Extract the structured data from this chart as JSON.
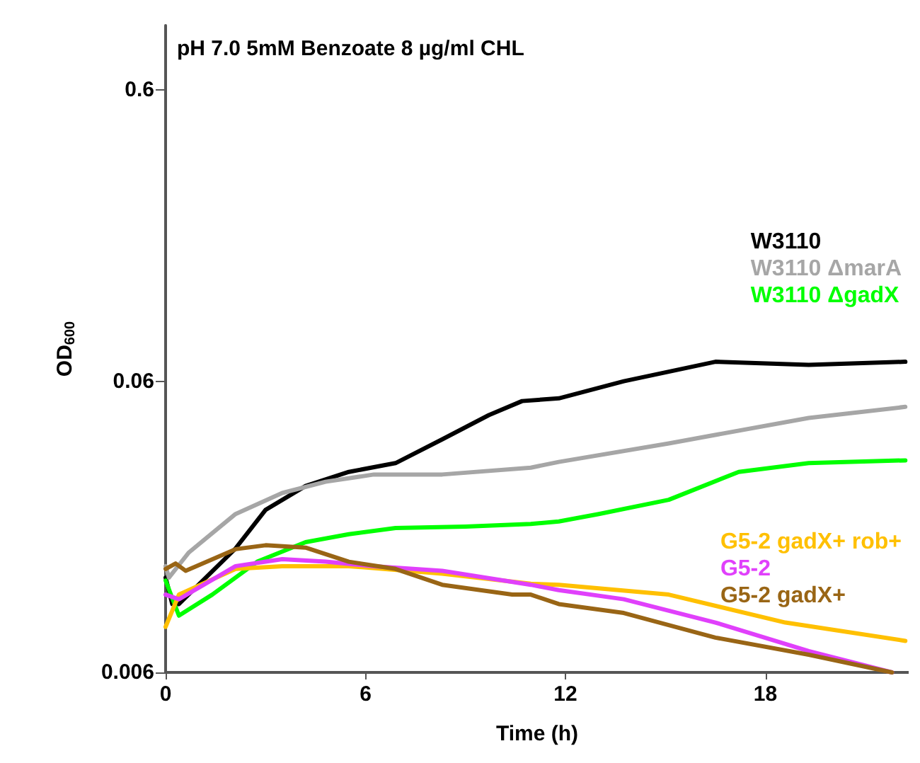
{
  "chart_data": {
    "type": "line",
    "title": "pH 7.0 5mM Benzoate 8 µg/ml CHL",
    "xlabel": "Time (h)",
    "ylabel": "OD$_{600}$",
    "log": "y",
    "xlim": [
      0,
      22.3
    ],
    "xticks": [
      0,
      6,
      12,
      18
    ],
    "ylim": [
      0.006,
      1
    ],
    "yticks": [
      0.006,
      0.06,
      0.6
    ],
    "grid": false,
    "legend": "right",
    "marker": "none",
    "line_style": "solid",
    "series": [
      {
        "name": "W3110",
        "color": "#000000",
        "x": [
          0,
          0.2,
          0.4,
          2.1,
          3.0,
          4.2,
          5.5,
          6.9,
          8.3,
          9.7,
          10.7,
          11.8,
          13.75,
          16.5,
          19.3,
          22.2
        ],
        "values": [
          0.0127,
          0.0103,
          0.0103,
          0.016,
          0.0217,
          0.0262,
          0.0293,
          0.0314,
          0.0379,
          0.0459,
          0.0513,
          0.0524,
          0.06,
          0.07,
          0.0683,
          0.07
        ]
      },
      {
        "name": "W3110 ΔmarA",
        "color": "#a6a6a6",
        "x": [
          0,
          0.1,
          0.7,
          2.1,
          3.5,
          4.8,
          6.25,
          8.3,
          10.96,
          11.8,
          15.1,
          19.3,
          22.2
        ],
        "values": [
          0.0139,
          0.0127,
          0.0155,
          0.021,
          0.0248,
          0.0271,
          0.0287,
          0.0287,
          0.0303,
          0.0317,
          0.0367,
          0.0449,
          0.049
        ]
      },
      {
        "name": "W3110 ΔgadX",
        "color": "#00ff00",
        "x": [
          0,
          0.4,
          1.4,
          2.75,
          4.2,
          5.5,
          6.9,
          9.0,
          10.96,
          11.8,
          13.0,
          15.1,
          17.2,
          19.3,
          22.2
        ],
        "values": [
          0.0124,
          0.0094,
          0.0111,
          0.0144,
          0.0168,
          0.0179,
          0.0188,
          0.019,
          0.0194,
          0.0198,
          0.021,
          0.0235,
          0.0293,
          0.0314,
          0.0321
        ]
      },
      {
        "name": "G5-2 gadX+ rob+",
        "color": "#ffc000",
        "x": [
          0,
          0.4,
          2.1,
          3.5,
          5.5,
          8.3,
          10.96,
          11.8,
          15.1,
          18.6,
          22.2
        ],
        "values": [
          0.0086,
          0.0111,
          0.0136,
          0.0139,
          0.0139,
          0.0131,
          0.0121,
          0.012,
          0.0111,
          0.0089,
          0.0077
        ]
      },
      {
        "name": "G5-2",
        "color": "#e040fb",
        "x": [
          0,
          0.4,
          2.1,
          3.5,
          4.8,
          6.25,
          8.3,
          10.96,
          11.8,
          13.75,
          16.5,
          19.3,
          21.8
        ],
        "values": [
          0.0111,
          0.0107,
          0.0139,
          0.0147,
          0.0144,
          0.0139,
          0.0134,
          0.012,
          0.0115,
          0.0107,
          0.0089,
          0.0071,
          0.006
        ]
      },
      {
        "name": "G5-2 gadX+",
        "color": "#996515",
        "x": [
          0,
          0.3,
          0.6,
          2.1,
          3.0,
          4.2,
          5.5,
          6.9,
          8.3,
          10.4,
          10.96,
          11.8,
          13.75,
          16.5,
          19.3,
          21.8
        ],
        "values": [
          0.0136,
          0.0142,
          0.0134,
          0.0159,
          0.0164,
          0.0161,
          0.0144,
          0.0136,
          0.012,
          0.0111,
          0.0111,
          0.0103,
          0.0096,
          0.0079,
          0.0069,
          0.006
        ]
      }
    ]
  }
}
